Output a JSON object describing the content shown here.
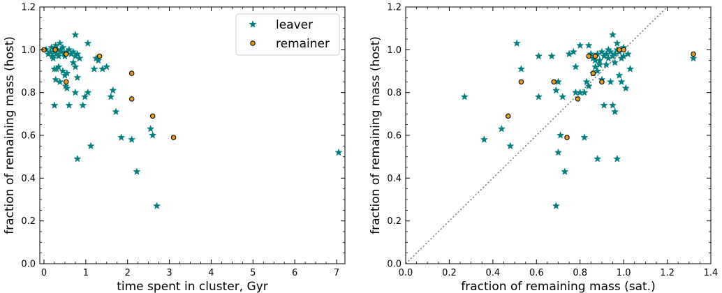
{
  "chart_data": [
    {
      "type": "scatter",
      "title": "",
      "xlabel": "time spent in cluster, Gyr",
      "ylabel": "fraction of remaining mass (host)",
      "xlim": [
        -0.1,
        7.2
      ],
      "ylim": [
        0.0,
        1.2
      ],
      "xticks": [
        "0",
        "1",
        "2",
        "3",
        "4",
        "5",
        "6",
        "7"
      ],
      "xtick_values": [
        0,
        1,
        2,
        3,
        4,
        5,
        6,
        7
      ],
      "yticks": [
        "0.0",
        "0.2",
        "0.4",
        "0.6",
        "0.8",
        "1.0",
        "1.2"
      ],
      "ytick_values": [
        0.0,
        0.2,
        0.4,
        0.6,
        0.8,
        1.0,
        1.2
      ],
      "legend": {
        "position": "upper-right",
        "entries": [
          "leaver",
          "remainer"
        ]
      },
      "series": [
        {
          "name": "leaver",
          "marker": "star",
          "color": "#008080",
          "points": [
            [
              0.05,
              1.0
            ],
            [
              0.1,
              0.98
            ],
            [
              0.15,
              0.99
            ],
            [
              0.18,
              1.01
            ],
            [
              0.2,
              0.97
            ],
            [
              0.22,
              0.96
            ],
            [
              0.25,
              0.99
            ],
            [
              0.28,
              1.02
            ],
            [
              0.3,
              0.98
            ],
            [
              0.32,
              1.0
            ],
            [
              0.35,
              0.97
            ],
            [
              0.38,
              1.03
            ],
            [
              0.4,
              1.0
            ],
            [
              0.42,
              0.99
            ],
            [
              0.45,
              1.01
            ],
            [
              0.48,
              0.98
            ],
            [
              0.5,
              0.97
            ],
            [
              0.55,
              0.99
            ],
            [
              0.6,
              1.0
            ],
            [
              0.65,
              0.98
            ],
            [
              0.7,
              0.99
            ],
            [
              0.75,
              0.97
            ],
            [
              0.8,
              0.98
            ],
            [
              0.85,
              0.96
            ],
            [
              0.25,
              0.91
            ],
            [
              0.3,
              0.91
            ],
            [
              0.35,
              0.92
            ],
            [
              0.45,
              0.9
            ],
            [
              0.5,
              0.88
            ],
            [
              0.55,
              0.89
            ],
            [
              0.7,
              0.94
            ],
            [
              0.75,
              0.92
            ],
            [
              0.8,
              0.87
            ],
            [
              0.28,
              0.86
            ],
            [
              0.38,
              0.85
            ],
            [
              0.52,
              0.83
            ],
            [
              0.55,
              0.82
            ],
            [
              0.6,
              0.74
            ],
            [
              0.25,
              0.74
            ],
            [
              0.75,
              0.8
            ],
            [
              0.93,
              0.74
            ],
            [
              0.98,
              0.78
            ],
            [
              1.05,
              0.8
            ],
            [
              0.8,
              0.49
            ],
            [
              0.75,
              1.07
            ],
            [
              1.05,
              1.03
            ],
            [
              1.25,
              0.96
            ],
            [
              1.2,
              0.91
            ],
            [
              1.3,
              0.95
            ],
            [
              1.4,
              0.91
            ],
            [
              1.5,
              0.92
            ],
            [
              1.6,
              0.78
            ],
            [
              1.65,
              0.81
            ],
            [
              1.72,
              0.71
            ],
            [
              1.85,
              0.59
            ],
            [
              2.1,
              0.58
            ],
            [
              2.55,
              0.63
            ],
            [
              2.6,
              0.6
            ],
            [
              2.22,
              0.43
            ],
            [
              2.7,
              0.27
            ],
            [
              1.12,
              0.55
            ],
            [
              7.05,
              0.52
            ]
          ]
        },
        {
          "name": "remainer",
          "marker": "circle",
          "color": "#e69f10",
          "points": [
            [
              0.0,
              1.0
            ],
            [
              0.27,
              1.0
            ],
            [
              0.53,
              0.98
            ],
            [
              0.53,
              0.85
            ],
            [
              1.33,
              0.97
            ],
            [
              2.1,
              0.89
            ],
            [
              2.1,
              0.77
            ],
            [
              2.6,
              0.69
            ],
            [
              3.1,
              0.59
            ]
          ]
        }
      ]
    },
    {
      "type": "scatter",
      "title": "",
      "xlabel": "fraction of remaining mass (sat.)",
      "ylabel": "fraction of remaining mass (host)",
      "xlim": [
        0.0,
        1.4
      ],
      "ylim": [
        0.0,
        1.2
      ],
      "xticks": [
        "0.0",
        "0.2",
        "0.4",
        "0.6",
        "0.8",
        "1.0",
        "1.2",
        "1.4"
      ],
      "xtick_values": [
        0.0,
        0.2,
        0.4,
        0.6,
        0.8,
        1.0,
        1.2,
        1.4
      ],
      "yticks": [
        "0.0",
        "0.2",
        "0.4",
        "0.6",
        "0.8",
        "1.0",
        "1.2"
      ],
      "ytick_values": [
        0.0,
        0.2,
        0.4,
        0.6,
        0.8,
        1.0,
        1.2
      ],
      "reference_line": {
        "style": "dotted",
        "color": "#777777",
        "slope": 1
      },
      "series": [
        {
          "name": "leaver",
          "marker": "star",
          "color": "#008080",
          "points": [
            [
              0.27,
              0.78
            ],
            [
              0.36,
              0.58
            ],
            [
              0.44,
              0.63
            ],
            [
              0.48,
              0.55
            ],
            [
              0.51,
              1.03
            ],
            [
              0.53,
              0.91
            ],
            [
              0.61,
              0.97
            ],
            [
              0.61,
              0.78
            ],
            [
              0.67,
              0.97
            ],
            [
              0.69,
              0.81
            ],
            [
              0.7,
              0.85
            ],
            [
              0.69,
              0.27
            ],
            [
              0.7,
              0.52
            ],
            [
              0.71,
              0.6
            ],
            [
              0.72,
              0.78
            ],
            [
              0.73,
              0.43
            ],
            [
              0.75,
              0.98
            ],
            [
              0.77,
              0.99
            ],
            [
              0.78,
              0.8
            ],
            [
              0.78,
              0.92
            ],
            [
              0.8,
              1.02
            ],
            [
              0.8,
              0.8
            ],
            [
              0.82,
              0.59
            ],
            [
              0.82,
              0.8
            ],
            [
              0.83,
              0.85
            ],
            [
              0.84,
              1.02
            ],
            [
              0.85,
              0.98
            ],
            [
              0.86,
              0.96
            ],
            [
              0.87,
              0.92
            ],
            [
              0.88,
              0.49
            ],
            [
              0.88,
              0.9
            ],
            [
              0.89,
              0.95
            ],
            [
              0.9,
              0.86
            ],
            [
              0.91,
              0.74
            ],
            [
              0.92,
              0.93
            ],
            [
              0.92,
              0.98
            ],
            [
              0.93,
              0.96
            ],
            [
              0.94,
              0.85
            ],
            [
              0.95,
              0.97
            ],
            [
              0.95,
              0.74
            ],
            [
              0.96,
              0.71
            ],
            [
              0.96,
              0.94
            ],
            [
              0.97,
              0.49
            ],
            [
              0.97,
              1.0
            ],
            [
              0.98,
              0.88
            ],
            [
              0.99,
              0.85
            ],
            [
              1.0,
              0.97
            ],
            [
              1.0,
              1.01
            ],
            [
              1.01,
              0.82
            ],
            [
              1.02,
              0.98
            ],
            [
              1.03,
              0.91
            ],
            [
              0.95,
              1.07
            ],
            [
              0.97,
              1.03
            ],
            [
              0.98,
              0.99
            ],
            [
              0.99,
              0.96
            ],
            [
              0.93,
              1.0
            ],
            [
              0.94,
              0.99
            ],
            [
              0.96,
              0.98
            ],
            [
              0.9,
              0.99
            ],
            [
              0.91,
              0.97
            ],
            [
              0.89,
              0.93
            ],
            [
              0.88,
              0.98
            ],
            [
              0.86,
              0.89
            ],
            [
              0.84,
              0.83
            ],
            [
              0.87,
              0.95
            ],
            [
              1.32,
              0.96
            ]
          ]
        },
        {
          "name": "remainer",
          "marker": "circle",
          "color": "#e69f10",
          "points": [
            [
              0.47,
              0.69
            ],
            [
              0.53,
              0.85
            ],
            [
              0.68,
              0.85
            ],
            [
              0.74,
              0.59
            ],
            [
              0.79,
              0.77
            ],
            [
              0.84,
              0.97
            ],
            [
              0.86,
              0.89
            ],
            [
              0.87,
              0.97
            ],
            [
              0.9,
              0.85
            ],
            [
              0.98,
              1.0
            ],
            [
              1.0,
              1.0
            ],
            [
              1.32,
              0.98
            ]
          ]
        }
      ]
    }
  ]
}
